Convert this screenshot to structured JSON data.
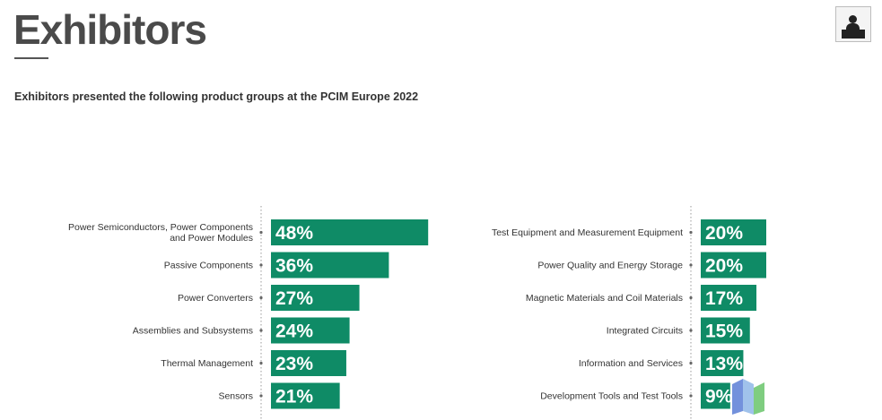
{
  "header": {
    "title": "Exhibitors",
    "subtitle": "Exhibitors presented the following product groups at the PCIM Europe 2022",
    "icon": "exhibitor-booth-icon"
  },
  "colors": {
    "bar": "#0f8b66",
    "dotted_axis": "#999999"
  },
  "chart_data": [
    {
      "type": "bar",
      "orientation": "horizontal",
      "categories": [
        [
          "Power Semiconductors, Power Components",
          "and Power Modules"
        ],
        [
          "Passive Components"
        ],
        [
          "Power Converters"
        ],
        [
          "Assemblies and Subsystems"
        ],
        [
          "Thermal Management"
        ],
        [
          "Sensors"
        ]
      ],
      "values": [
        48,
        36,
        27,
        24,
        23,
        21
      ],
      "labels": [
        "48%",
        "36%",
        "27%",
        "24%",
        "23%",
        "21%"
      ],
      "unit": "%"
    },
    {
      "type": "bar",
      "orientation": "horizontal",
      "categories": [
        [
          "Test Equipment and Measurement Equipment"
        ],
        [
          "Power Quality and Energy Storage"
        ],
        [
          "Magnetic Materials and Coil Materials"
        ],
        [
          "Integrated Circuits"
        ],
        [
          "Information and Services"
        ],
        [
          "Development Tools and Test Tools"
        ]
      ],
      "values": [
        20,
        20,
        17,
        15,
        13,
        9
      ],
      "labels": [
        "20%",
        "20%",
        "17%",
        "15%",
        "13%",
        "9%"
      ],
      "unit": "%"
    }
  ]
}
